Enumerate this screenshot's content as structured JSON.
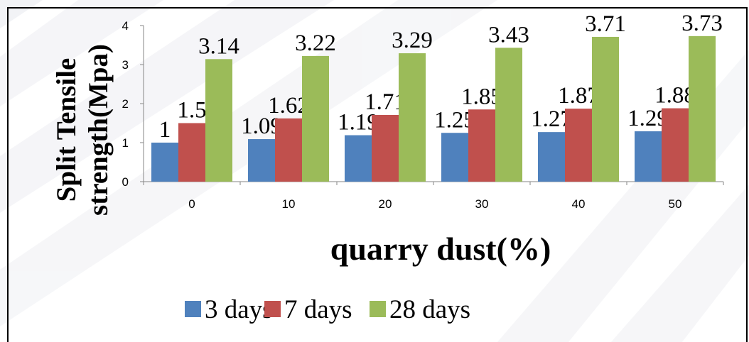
{
  "chart_data": {
    "type": "bar",
    "title": "",
    "xlabel": "quarry dust(%)",
    "ylabel_lines": [
      "Split Tensile",
      "strength(Mpa)"
    ],
    "ylim": [
      0,
      4
    ],
    "yticks": [
      "0",
      "1",
      "2",
      "3",
      "4"
    ],
    "categories": [
      "0",
      "10",
      "20",
      "30",
      "40",
      "50"
    ],
    "series": [
      {
        "name": "3 days",
        "color": "#4F81BD",
        "values": [
          1,
          1.09,
          1.19,
          1.25,
          1.27,
          1.29
        ],
        "labels": [
          "1",
          "1.09",
          "1.19",
          "1.25",
          "1.27",
          "1.29"
        ]
      },
      {
        "name": "7 days",
        "color": "#C0504D",
        "values": [
          1.5,
          1.62,
          1.71,
          1.85,
          1.87,
          1.88
        ],
        "labels": [
          "1.5",
          "1.62",
          "1.71",
          "1.85",
          "1.87",
          "1.88"
        ]
      },
      {
        "name": "28 days",
        "color": "#9BBB59",
        "values": [
          3.14,
          3.22,
          3.29,
          3.43,
          3.71,
          3.73
        ],
        "labels": [
          "3.14",
          "3.22",
          "3.29",
          "3.43",
          "3.71",
          "3.73"
        ]
      }
    ],
    "legend_position": "bottom",
    "grid": false
  }
}
